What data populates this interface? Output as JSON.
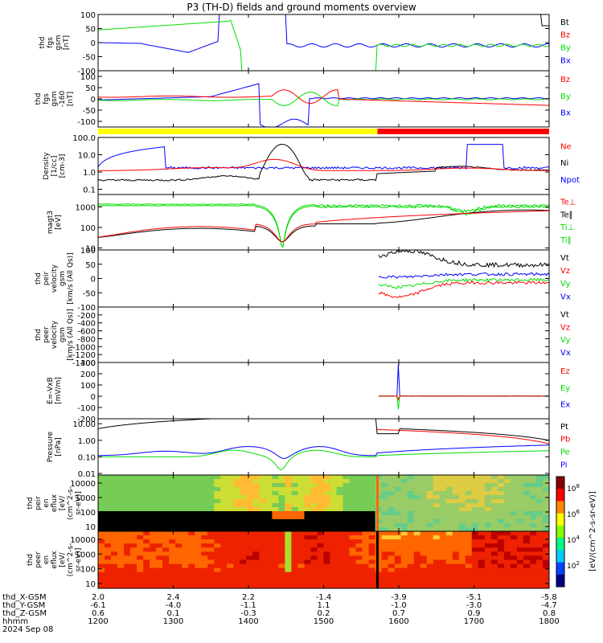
{
  "title": "P3 (TH-D) fields and ground moments overview",
  "colors": {
    "black": "#000000",
    "red": "#ff0000",
    "green": "#00dd00",
    "blue": "#0000ff",
    "yellow": "#ffff00"
  },
  "chart_data": {
    "type": "line",
    "title": "P3 (TH-D) fields and ground moments overview",
    "xlabel": "hhmm",
    "date_label": "2024 Sep 08",
    "x_ticks": [
      "1200",
      "1300",
      "1400",
      "1500",
      "1600",
      "1700",
      "1800"
    ],
    "x_range": [
      "1200",
      "1800"
    ],
    "orbit_rows": [
      {
        "label": "thd_X-GSM",
        "values": [
          "2.0",
          "2.4",
          "2.2",
          "-1.4",
          "-3.9",
          "-5.1",
          "-5.8"
        ]
      },
      {
        "label": "thd_Y-GSM",
        "values": [
          "-6.1",
          "-4.0",
          "-1.1",
          "1.1",
          "-1.0",
          "-3.0",
          "-4.7"
        ]
      },
      {
        "label": "thd_Z-GSM",
        "values": [
          "0.6",
          "0.1",
          "-0.3",
          "0.2",
          "0.7",
          "0.9",
          "0.8"
        ]
      }
    ],
    "panels": [
      {
        "id": "fgs",
        "ylabel": [
          "thd",
          "fgs",
          "gsm",
          "[nT]"
        ],
        "ylim": [
          -100,
          100
        ],
        "yticks": [
          "100",
          "50",
          "0",
          "-50",
          "-100"
        ],
        "legend": [
          {
            "name": "Bt",
            "color": "#000000"
          },
          {
            "name": "Bz",
            "color": "#ff0000"
          },
          {
            "name": "By",
            "color": "#00dd00"
          },
          {
            "name": "Bx",
            "color": "#0000ff"
          }
        ]
      },
      {
        "id": "fgs-dsl",
        "ylabel": [
          "thd",
          "fgs",
          "gsm",
          "-160",
          "[nT]"
        ],
        "ylim": [
          -125,
          125
        ],
        "yticks": [
          "100",
          "50",
          "0",
          "-50",
          "-100"
        ],
        "legend": [
          {
            "name": "Bz",
            "color": "#ff0000"
          },
          {
            "name": "By",
            "color": "#00dd00"
          },
          {
            "name": "Bx",
            "color": "#0000ff"
          }
        ]
      },
      {
        "id": "density",
        "ylabel": [
          "Density",
          "[1/cc]",
          "[cm-3]"
        ],
        "scale": "log",
        "ylim": [
          0.05,
          100
        ],
        "yticks": [
          "100.0",
          "10.0",
          "1.0",
          "0.1"
        ],
        "legend": [
          {
            "name": "Ne",
            "color": "#ff0000"
          },
          {
            "name": "Ni",
            "color": "#000000"
          },
          {
            "name": "Npot",
            "color": "#0000ff"
          }
        ]
      },
      {
        "id": "temperature",
        "ylabel": [
          "magt3",
          "[eV]"
        ],
        "scale": "log",
        "ylim": [
          8,
          4000
        ],
        "yticks": [
          "1000",
          "100",
          "10"
        ],
        "legend": [
          {
            "name": "Te⊥",
            "color": "#ff0000"
          },
          {
            "name": "Te∥",
            "color": "#000000"
          },
          {
            "name": "Ti⊥",
            "color": "#00dd00"
          },
          {
            "name": "Ti∥",
            "color": "#00dd00"
          }
        ]
      },
      {
        "id": "peir-velocity",
        "ylabel": [
          "thd",
          "peir",
          "velocity",
          "gsm",
          "[km/s (All Qs)]"
        ],
        "ylim": [
          -100,
          100
        ],
        "yticks": [
          "100",
          "50",
          "0",
          "-50",
          "-100"
        ],
        "legend": [
          {
            "name": "Vt",
            "color": "#000000"
          },
          {
            "name": "Vz",
            "color": "#ff0000"
          },
          {
            "name": "Vy",
            "color": "#00dd00"
          },
          {
            "name": "Vx",
            "color": "#0000ff"
          }
        ]
      },
      {
        "id": "peer-velocity",
        "ylabel": [
          "thd",
          "peer",
          "velocity",
          "gsm",
          "[km/s (All Qs)]"
        ],
        "ylim": [
          -1400,
          0
        ],
        "yticks": [
          "-200",
          "-400",
          "-600",
          "-800",
          "-1000",
          "-1200",
          "-1400"
        ],
        "legend": [
          {
            "name": "Vt",
            "color": "#000000"
          },
          {
            "name": "Vz",
            "color": "#ff0000"
          },
          {
            "name": "Vy",
            "color": "#00dd00"
          },
          {
            "name": "Vx",
            "color": "#0000ff"
          }
        ]
      },
      {
        "id": "efield",
        "ylabel": [
          "E=-VxB",
          "[mV/m]"
        ],
        "ylim": [
          -200,
          300
        ],
        "yticks": [
          "300",
          "200",
          "100",
          "0",
          "-100",
          "-200"
        ],
        "legend": [
          {
            "name": "Ez",
            "color": "#ff0000"
          },
          {
            "name": "Ey",
            "color": "#00dd00"
          },
          {
            "name": "Ex",
            "color": "#0000ff"
          }
        ]
      },
      {
        "id": "pressure",
        "ylabel": [
          "Pressure",
          "[nPa]"
        ],
        "scale": "log",
        "ylim": [
          0.008,
          20
        ],
        "yticks": [
          "10.00",
          "1.00",
          "0.10",
          "0.01"
        ],
        "legend": [
          {
            "name": "Pt",
            "color": "#000000"
          },
          {
            "name": "Pb",
            "color": "#ff0000"
          },
          {
            "name": "Pe",
            "color": "#00dd00"
          },
          {
            "name": "Pi",
            "color": "#0000ff"
          }
        ]
      },
      {
        "id": "peir-spectrogram",
        "type": "heatmap",
        "ylabel": [
          "thd",
          "peir",
          "en",
          "eflux",
          "[eV/",
          "(cm^2-s-",
          "sr-eV)]"
        ],
        "scale": "log",
        "yticks": [
          "10000",
          "1000",
          "100",
          "10"
        ]
      },
      {
        "id": "peer-spectrogram",
        "type": "heatmap",
        "ylabel": [
          "thd",
          "peer",
          "en",
          "eflux",
          "[eV/",
          "(cm^2-s-",
          "sr-eV)]"
        ],
        "scale": "log",
        "yticks": [
          "10000",
          "1000",
          "100",
          "10"
        ]
      }
    ],
    "colorbar": {
      "label": "[eV/(cm^2-s-sr-eV)]",
      "ticks": [
        "10^8",
        "10^6",
        "10^4",
        "10^2"
      ]
    },
    "mode_bar": [
      {
        "from": "1200",
        "to": "1543",
        "color": "yellow"
      },
      {
        "from": "1543",
        "to": "1800",
        "color": "red"
      }
    ]
  }
}
